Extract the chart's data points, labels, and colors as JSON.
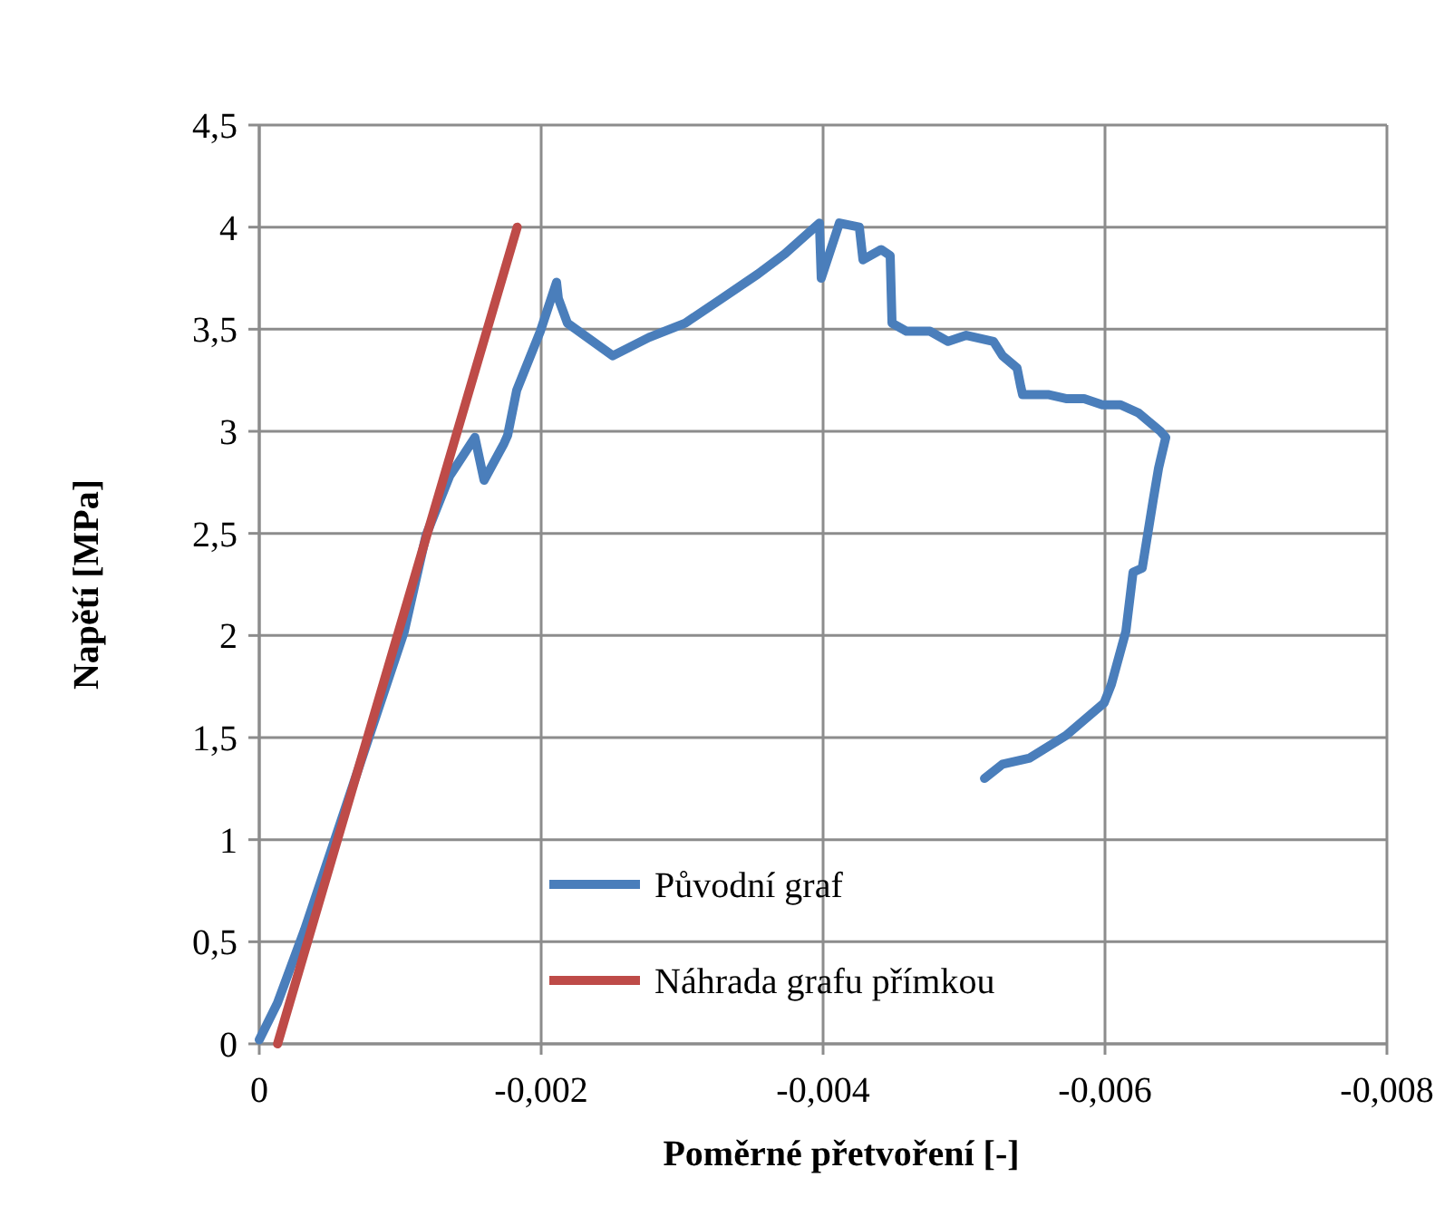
{
  "chart_data": {
    "type": "line",
    "xlabel": "Poměrné přetvoření [-]",
    "ylabel": "Napětí [MPa]",
    "xlim": [
      0,
      -0.008
    ],
    "xticks": [
      0,
      {
        "value": -0.002,
        "label": "-0,002"
      },
      {
        "value": -0.004,
        "label": "-0,004"
      },
      {
        "value": -0.006,
        "label": "-0,006"
      },
      {
        "value": -0.008,
        "label": "-0,008"
      }
    ],
    "ylim": [
      0,
      4.5
    ],
    "yticks": [
      0,
      {
        "value": 0.5,
        "label": "0,5"
      },
      1,
      {
        "value": 1.5,
        "label": "1,5"
      },
      2,
      {
        "value": 2.5,
        "label": "2,5"
      },
      3,
      {
        "value": 3.5,
        "label": "3,5"
      },
      4,
      {
        "value": 4.5,
        "label": "4,5"
      }
    ],
    "grid": true,
    "legend": "bottom",
    "marker": "none",
    "line_style": "solid",
    "series": [
      {
        "name": "Původní graf",
        "color": "#4a7ebb",
        "x": [
          0,
          -0.000129,
          -0.000322,
          -0.000579,
          -0.000836,
          -0.001029,
          -0.001183,
          -0.00135,
          -0.00153,
          -0.001595,
          -0.001736,
          -0.001762,
          -0.001826,
          -0.001878,
          -0.001994,
          -0.002109,
          -0.002122,
          -0.002186,
          -0.002508,
          -0.002765,
          -0.003022,
          -0.00328,
          -0.003537,
          -0.00373,
          -0.003974,
          -0.003987,
          -0.004116,
          -0.004257,
          -0.004283,
          -0.004412,
          -0.004476,
          -0.004489,
          -0.004592,
          -0.004759,
          -0.004887,
          -0.005016,
          -0.005209,
          -0.005273,
          -0.005376,
          -0.005402,
          -0.005415,
          -0.005595,
          -0.005723,
          -0.005852,
          -0.005981,
          -0.00611,
          -0.006238,
          -0.006393,
          -0.006431,
          -0.00638,
          -0.006341,
          -0.006264,
          -0.006199,
          -0.006148,
          -0.006045,
          -0.005994,
          -0.005723,
          -0.005466,
          -0.005273,
          -0.005145
        ],
        "values": [
          0.02,
          0.2,
          0.56,
          1.09,
          1.62,
          2.02,
          2.49,
          2.78,
          2.97,
          2.76,
          2.94,
          2.98,
          3.2,
          3.29,
          3.49,
          3.73,
          3.65,
          3.53,
          3.37,
          3.46,
          3.53,
          3.65,
          3.77,
          3.87,
          4.02,
          3.75,
          4.02,
          4.0,
          3.84,
          3.89,
          3.86,
          3.53,
          3.49,
          3.49,
          3.44,
          3.47,
          3.44,
          3.37,
          3.31,
          3.22,
          3.18,
          3.18,
          3.16,
          3.16,
          3.13,
          3.13,
          3.09,
          3.0,
          2.97,
          2.82,
          2.66,
          2.33,
          2.31,
          2.02,
          1.76,
          1.67,
          1.51,
          1.4,
          1.37,
          1.3
        ]
      },
      {
        "name": "Náhrada grafu přímkou",
        "color": "#be4b48",
        "x": [
          -0.00013,
          -0.00183
        ],
        "values": [
          0,
          4
        ]
      }
    ]
  }
}
